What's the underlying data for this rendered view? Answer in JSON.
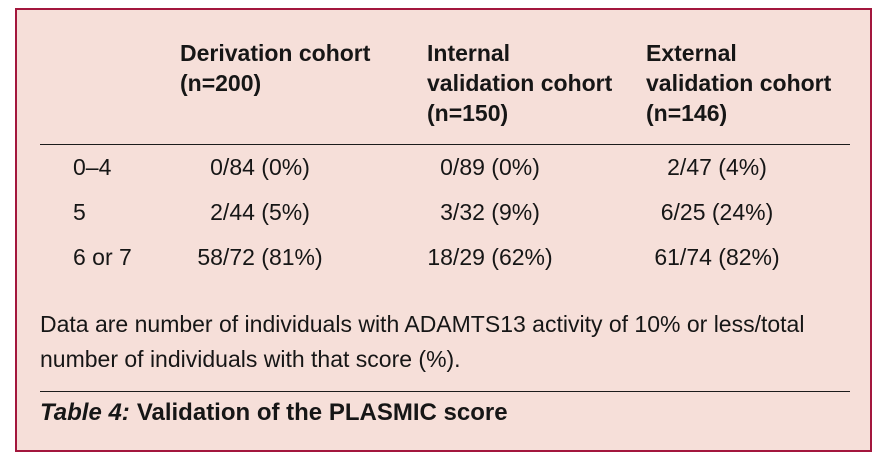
{
  "colors": {
    "panel_border": "#A3173D",
    "panel_background": "#F6DFD9",
    "rule": "#1c1c1c"
  },
  "table": {
    "headers": [
      {
        "lines": []
      },
      {
        "lines": [
          "Derivation cohort",
          "(n=200)"
        ]
      },
      {
        "lines": [
          "Internal",
          "validation cohort",
          "(n=150)"
        ]
      },
      {
        "lines": [
          "External",
          "validation cohort",
          "(n=146)"
        ]
      }
    ],
    "rows": [
      {
        "label": "0–4",
        "values": [
          "0/84 (0%)",
          "0/89 (0%)",
          "2/47 (4%)"
        ]
      },
      {
        "label": "5",
        "values": [
          "2/44 (5%)",
          "3/32 (9%)",
          "6/25 (24%)"
        ]
      },
      {
        "label": "6 or 7",
        "values": [
          "58/72 (81%)",
          "18/29 (62%)",
          "61/74 (82%)"
        ]
      }
    ]
  },
  "footnote": "Data are number of individuals with ADAMTS13 activity of 10% or less/total number of individuals with that score (%).",
  "caption": {
    "label": "Table 4:",
    "text": "Validation of the PLASMIC score"
  }
}
